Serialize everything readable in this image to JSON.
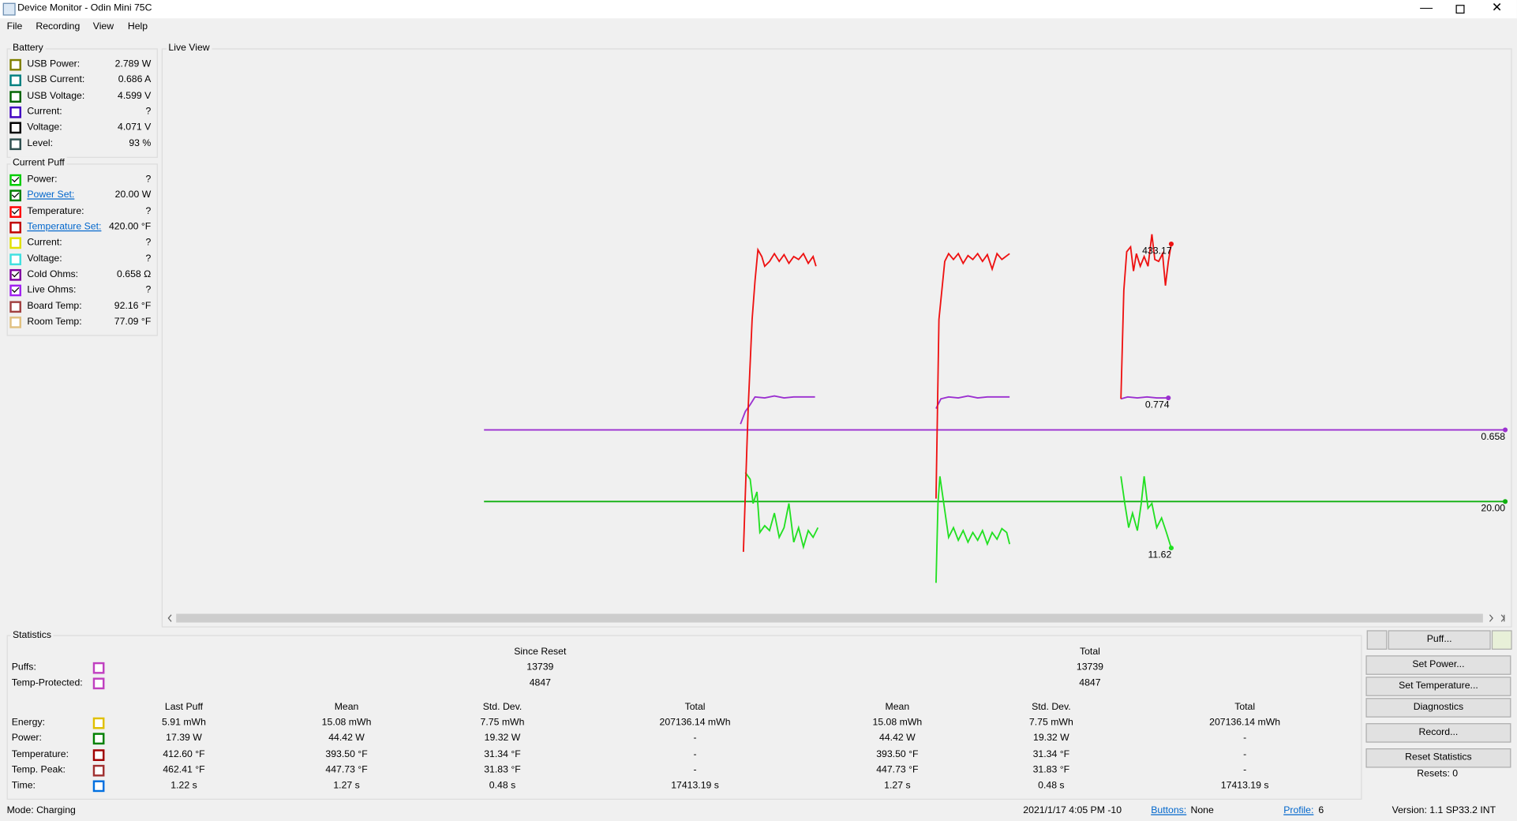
{
  "window": {
    "title": "Device Monitor - Odin Mini 75C",
    "menu": [
      "File",
      "Recording",
      "View",
      "Help"
    ]
  },
  "battery": {
    "title": "Battery",
    "rows": [
      {
        "label": "USB Power:",
        "value": "2.789 W",
        "color": "#808000",
        "checked": false
      },
      {
        "label": "USB Current:",
        "value": "0.686 A",
        "color": "#008080",
        "checked": false
      },
      {
        "label": "USB Voltage:",
        "value": "4.599 V",
        "color": "#006400",
        "checked": false
      },
      {
        "label": "Current:",
        "value": "?",
        "color": "#4000c0",
        "checked": false
      },
      {
        "label": "Voltage:",
        "value": "4.071 V",
        "color": "#000000",
        "checked": false
      },
      {
        "label": "Level:",
        "value": "93 %",
        "color": "#2f4f4f",
        "checked": false
      }
    ]
  },
  "current_puff": {
    "title": "Current Puff",
    "rows": [
      {
        "label": "Power:",
        "value": "?",
        "color": "#00cc00",
        "checked": true,
        "link": false
      },
      {
        "label": "Power Set:",
        "value": "20.00 W",
        "color": "#008000",
        "checked": true,
        "link": true
      },
      {
        "label": "Temperature:",
        "value": "?",
        "color": "#ff0000",
        "checked": true,
        "link": false
      },
      {
        "label": "Temperature Set:",
        "value": "420.00 °F",
        "color": "#c00000",
        "checked": false,
        "link": true
      },
      {
        "label": "Current:",
        "value": "?",
        "color": "#e0e000",
        "checked": false,
        "link": false
      },
      {
        "label": "Voltage:",
        "value": "?",
        "color": "#40e0e0",
        "checked": false,
        "link": false
      },
      {
        "label": "Cold Ohms:",
        "value": "0.658 Ω",
        "color": "#8000a0",
        "checked": true,
        "link": false
      },
      {
        "label": "Live Ohms:",
        "value": "?",
        "color": "#a020f0",
        "checked": true,
        "link": false
      },
      {
        "label": "Board Temp:",
        "value": "92.16 °F",
        "color": "#a04040",
        "checked": false,
        "link": false
      },
      {
        "label": "Room Temp:",
        "value": "77.09 °F",
        "color": "#e0c080",
        "checked": false,
        "link": false
      }
    ]
  },
  "live_view": {
    "title": "Live View",
    "labels": [
      "433.17",
      "0.774",
      "0.658",
      "11.62",
      "20.00"
    ]
  },
  "statistics": {
    "title": "Statistics",
    "groups": [
      "Since Reset",
      "Total"
    ],
    "count_rows": [
      {
        "label": "Puffs:",
        "color": "#c040c0",
        "values": [
          "13739",
          "13739"
        ]
      },
      {
        "label": "Temp-Protected:",
        "color": "#c040c0",
        "values": [
          "4847",
          "4847"
        ]
      }
    ],
    "columns": [
      "Last Puff",
      "Mean",
      "Std. Dev.",
      "Total",
      "Mean",
      "Std. Dev.",
      "Total"
    ],
    "rows": [
      {
        "label": "Energy:",
        "color": "#e0c000",
        "values": [
          "5.91 mWh",
          "15.08 mWh",
          "7.75 mWh",
          "207136.14 mWh",
          "15.08 mWh",
          "7.75 mWh",
          "207136.14 mWh"
        ]
      },
      {
        "label": "Power:",
        "color": "#008000",
        "values": [
          "17.39 W",
          "44.42 W",
          "19.32 W",
          "-",
          "44.42 W",
          "19.32 W",
          "-"
        ]
      },
      {
        "label": "Temperature:",
        "color": "#a00000",
        "values": [
          "412.60 °F",
          "393.50 °F",
          "31.34 °F",
          "-",
          "393.50 °F",
          "31.34 °F",
          "-"
        ]
      },
      {
        "label": "Temp. Peak:",
        "color": "#a03030",
        "values": [
          "462.41 °F",
          "447.73 °F",
          "31.83 °F",
          "-",
          "447.73 °F",
          "31.83 °F",
          "-"
        ]
      },
      {
        "label": "Time:",
        "color": "#0070e0",
        "values": [
          "1.22 s",
          "1.27 s",
          "0.48 s",
          "17413.19 s",
          "1.27 s",
          "0.48 s",
          "17413.19 s"
        ]
      }
    ]
  },
  "buttons": {
    "puff": "Puff...",
    "list": [
      "Set Power...",
      "Set Temperature...",
      "Diagnostics",
      "Record...",
      "Reset Statistics"
    ],
    "resets": "Resets: 0"
  },
  "status": {
    "mode": "Mode: Charging",
    "datetime": "2021/1/17 4:05 PM -10",
    "buttons_label": "Buttons:",
    "buttons_value": "None",
    "profile_label": "Profile:",
    "profile_value": "6",
    "version": "Version: 1.1 SP33.2 INT"
  }
}
